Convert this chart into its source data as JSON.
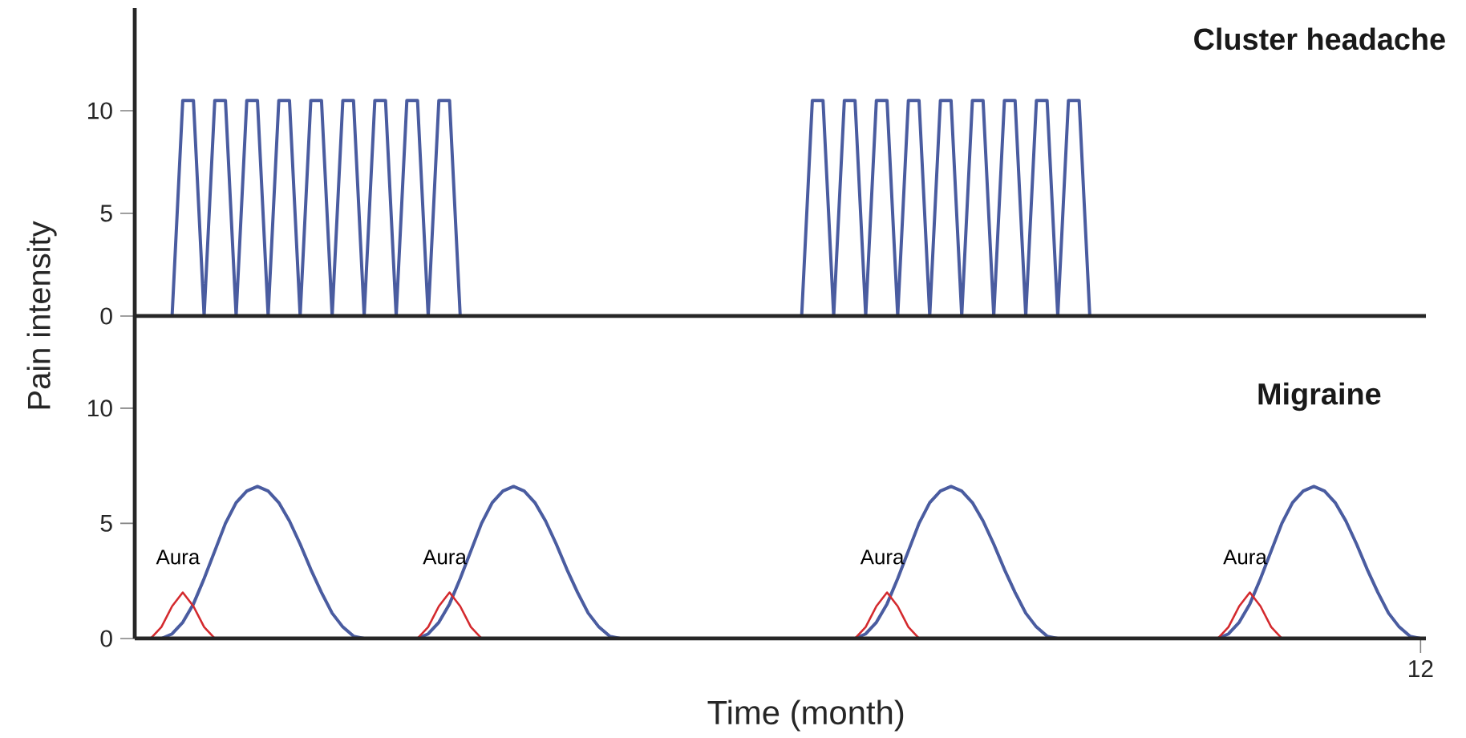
{
  "chart_data": [
    {
      "type": "line",
      "title": "Cluster headache",
      "ylim": [
        0,
        15
      ],
      "yticks": [
        0,
        5,
        10
      ],
      "tick_labels": "y",
      "categories": [
        null,
        null,
        null,
        null,
        null,
        null,
        null,
        null,
        null,
        null,
        null,
        null,
        null,
        null,
        null,
        null,
        null,
        null,
        null,
        null,
        null,
        null,
        null,
        null,
        null,
        null,
        null,
        null,
        null,
        null,
        null,
        null,
        null,
        null,
        null,
        null,
        null,
        null,
        null,
        null,
        null,
        null,
        null,
        null,
        null,
        null,
        null,
        null,
        null,
        null,
        null,
        null,
        null,
        null,
        null,
        null,
        null,
        null,
        null,
        null,
        null,
        null,
        null,
        null,
        null,
        null,
        null,
        null,
        null,
        null,
        null,
        null,
        null,
        null,
        null,
        null,
        null,
        null,
        null,
        null,
        null,
        null,
        null,
        null,
        null,
        null,
        null,
        null,
        null,
        null,
        null,
        null,
        null,
        null,
        null,
        null,
        null,
        null,
        null,
        null,
        null,
        null,
        null,
        null,
        null,
        null,
        null,
        null,
        null,
        null,
        null,
        null,
        null,
        null,
        null,
        null,
        null,
        null,
        null,
        null,
        null
      ],
      "series": [
        {
          "color": "#4a5ca0",
          "values": [
            null,
            null,
            null,
            0,
            10.5,
            10.5,
            0,
            10.5,
            10.5,
            0,
            10.5,
            10.5,
            0,
            10.5,
            10.5,
            0,
            10.5,
            10.5,
            0,
            10.5,
            10.5,
            0,
            10.5,
            10.5,
            0,
            10.5,
            10.5,
            0,
            10.5,
            10.5,
            0,
            null,
            null,
            null,
            null,
            null,
            null,
            null,
            null,
            null,
            null,
            null,
            null,
            null,
            null,
            null,
            null,
            null,
            null,
            null,
            null,
            null,
            null,
            null,
            null,
            null,
            null,
            null,
            null,
            null,
            null,
            null,
            0,
            10.5,
            10.5,
            0,
            10.5,
            10.5,
            0,
            10.5,
            10.5,
            0,
            10.5,
            10.5,
            0,
            10.5,
            10.5,
            0,
            10.5,
            10.5,
            0,
            10.5,
            10.5,
            0,
            10.5,
            10.5,
            0,
            10.5,
            10.5,
            0,
            null,
            null,
            null,
            null,
            null,
            null,
            null,
            null,
            null,
            null,
            null,
            null,
            null,
            null,
            null,
            null,
            null,
            null,
            null,
            null,
            null,
            null,
            null,
            null,
            null,
            null,
            null,
            null,
            null,
            null,
            null
          ]
        }
      ]
    },
    {
      "type": "line",
      "title": "Migraine",
      "xlabel": "Time (month)",
      "ylabel": "Pain intensity",
      "ylim": [
        0,
        14
      ],
      "yticks": [
        0,
        5,
        10
      ],
      "categories": [
        null,
        null,
        null,
        null,
        null,
        null,
        null,
        null,
        null,
        null,
        null,
        null,
        null,
        null,
        null,
        null,
        null,
        null,
        null,
        null,
        null,
        null,
        null,
        null,
        null,
        null,
        null,
        null,
        null,
        null,
        null,
        null,
        null,
        null,
        null,
        null,
        null,
        null,
        null,
        null,
        null,
        null,
        null,
        null,
        null,
        null,
        null,
        null,
        null,
        null,
        null,
        null,
        null,
        null,
        null,
        null,
        null,
        null,
        null,
        null,
        null,
        null,
        null,
        null,
        null,
        null,
        null,
        null,
        null,
        null,
        null,
        null,
        null,
        null,
        null,
        null,
        null,
        null,
        null,
        null,
        null,
        null,
        null,
        null,
        null,
        null,
        null,
        null,
        null,
        null,
        null,
        null,
        null,
        null,
        null,
        null,
        null,
        null,
        null,
        null,
        null,
        null,
        null,
        null,
        null,
        null,
        null,
        null,
        null,
        null,
        null,
        null,
        null,
        null,
        null,
        null,
        null,
        null,
        null,
        null,
        "12"
      ],
      "series": [
        {
          "color": "#4a5ca0",
          "values": [
            null,
            null,
            0,
            0.2,
            0.7,
            1.5,
            2.6,
            3.8,
            5.0,
            5.9,
            6.4,
            6.6,
            6.4,
            5.9,
            5.1,
            4.1,
            3.0,
            2.0,
            1.1,
            0.5,
            0.1,
            0,
            null,
            null,
            null,
            null,
            0,
            0.2,
            0.7,
            1.5,
            2.6,
            3.8,
            5.0,
            5.9,
            6.4,
            6.6,
            6.4,
            5.9,
            5.1,
            4.1,
            3.0,
            2.0,
            1.1,
            0.5,
            0.1,
            0,
            null,
            null,
            null,
            null,
            null,
            null,
            null,
            null,
            null,
            null,
            null,
            null,
            null,
            null,
            null,
            null,
            null,
            null,
            null,
            null,
            null,
            0,
            0.2,
            0.7,
            1.5,
            2.6,
            3.8,
            5.0,
            5.9,
            6.4,
            6.6,
            6.4,
            5.9,
            5.1,
            4.1,
            3.0,
            2.0,
            1.1,
            0.5,
            0.1,
            0,
            null,
            null,
            null,
            null,
            null,
            null,
            null,
            null,
            null,
            null,
            null,
            null,
            null,
            null,
            0,
            0.2,
            0.7,
            1.5,
            2.6,
            3.8,
            5.0,
            5.9,
            6.4,
            6.6,
            6.4,
            5.9,
            5.1,
            4.1,
            3.0,
            2.0,
            1.1,
            0.5,
            0.1,
            0
          ]
        },
        {
          "color": "#d42a2e",
          "values": [
            null,
            0,
            0.5,
            1.4,
            2,
            1.4,
            0.5,
            0,
            null,
            null,
            null,
            null,
            null,
            null,
            null,
            null,
            null,
            null,
            null,
            null,
            null,
            null,
            null,
            null,
            null,
            null,
            0,
            0.5,
            1.4,
            2,
            1.4,
            0.5,
            0,
            null,
            null,
            null,
            null,
            null,
            null,
            null,
            null,
            null,
            null,
            null,
            null,
            null,
            null,
            null,
            null,
            null,
            null,
            null,
            null,
            null,
            null,
            null,
            null,
            null,
            null,
            null,
            null,
            null,
            null,
            null,
            null,
            null,
            null,
            0,
            0.5,
            1.4,
            2,
            1.4,
            0.5,
            0,
            null,
            null,
            null,
            null,
            null,
            null,
            null,
            null,
            null,
            null,
            null,
            null,
            null,
            null,
            null,
            null,
            null,
            null,
            null,
            null,
            null,
            null,
            null,
            null,
            null,
            null,
            null,
            0,
            0.5,
            1.4,
            2,
            1.4,
            0.5,
            0,
            null,
            null,
            null,
            null,
            null,
            null,
            null,
            null,
            null,
            null,
            null,
            null,
            null
          ]
        }
      ],
      "annotations": [
        "Aura",
        "Aura",
        "Aura",
        "Aura"
      ]
    }
  ]
}
